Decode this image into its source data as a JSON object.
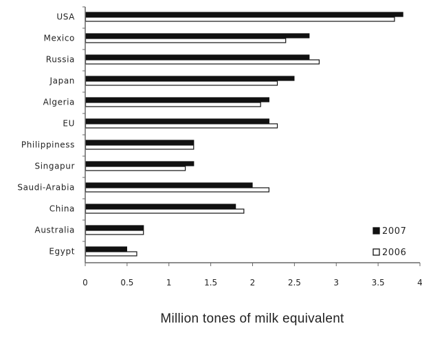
{
  "chart_data": {
    "type": "bar",
    "orientation": "horizontal",
    "categories": [
      "USA",
      "Mexico",
      "Russia",
      "Japan",
      "Algeria",
      "EU",
      "Philippiness",
      "Singapur",
      "Saudi-Arabia",
      "China",
      "Australia",
      "Egypt"
    ],
    "series": [
      {
        "name": "2007",
        "color": "#111111",
        "fill": "solid",
        "values": [
          3.8,
          2.68,
          2.68,
          2.5,
          2.2,
          2.2,
          1.3,
          1.3,
          2.0,
          1.8,
          0.7,
          0.5
        ]
      },
      {
        "name": "2006",
        "color": "#111111",
        "fill": "hollow",
        "values": [
          3.7,
          2.4,
          2.8,
          2.3,
          2.1,
          2.3,
          1.3,
          1.2,
          2.2,
          1.9,
          0.7,
          0.62
        ]
      }
    ],
    "xlabel": "Million tones of milk equivalent",
    "ylabel": "",
    "xlim": [
      0,
      4
    ],
    "xticks": [
      0,
      0.5,
      1,
      1.5,
      2,
      2.5,
      3,
      3.5,
      4
    ],
    "xtick_labels": [
      "0",
      "0.5",
      "1",
      "1.5",
      "2",
      "2.5",
      "3",
      "3.5",
      "4"
    ],
    "legend": {
      "placement": "right"
    },
    "grid": false
  }
}
